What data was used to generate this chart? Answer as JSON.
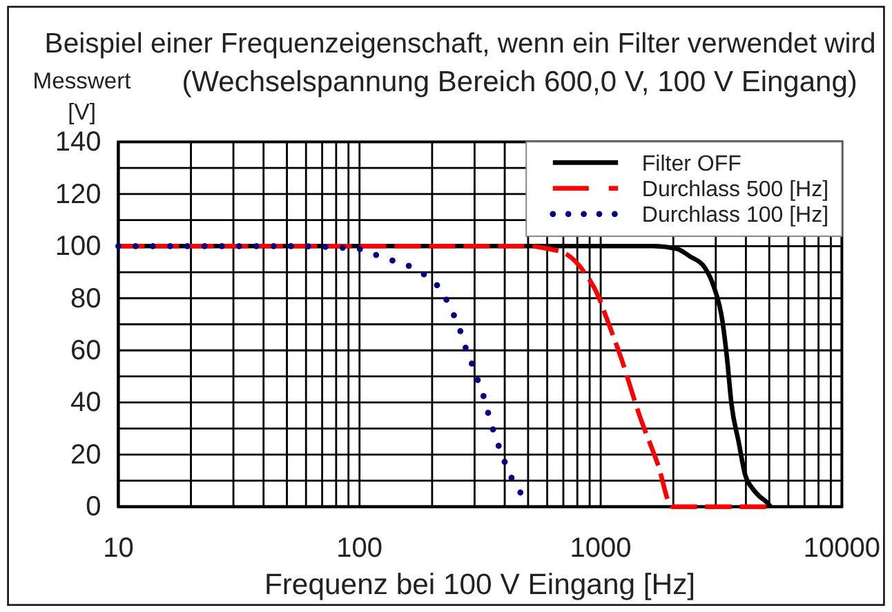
{
  "chart_data": {
    "type": "line",
    "title": "Beispiel einer Frequenzeigenschaft, wenn ein Filter verwendet wird",
    "subtitle": "(Wechselspannung Bereich 600,0 V, 100 V Eingang)",
    "xlabel": "Frequenz bei 100 V Eingang [Hz]",
    "ylabel": "Messwert [V]",
    "log": "x",
    "xlim": [
      10,
      10000
    ],
    "ylim": [
      0,
      140
    ],
    "xticks": [
      10,
      {
        "value": 20,
        "label": null
      },
      {
        "value": 30,
        "label": null
      },
      {
        "value": 40,
        "label": null
      },
      {
        "value": 50,
        "label": null
      },
      {
        "value": 60,
        "label": null
      },
      {
        "value": 70,
        "label": null
      },
      {
        "value": 80,
        "label": null
      },
      {
        "value": 90,
        "label": null
      },
      100,
      {
        "value": 200,
        "label": null
      },
      {
        "value": 300,
        "label": null
      },
      {
        "value": 400,
        "label": null
      },
      {
        "value": 500,
        "label": null
      },
      {
        "value": 600,
        "label": null
      },
      {
        "value": 700,
        "label": null
      },
      {
        "value": 800,
        "label": null
      },
      {
        "value": 900,
        "label": null
      },
      1000,
      {
        "value": 2000,
        "label": null
      },
      {
        "value": 3000,
        "label": null
      },
      {
        "value": 4000,
        "label": null
      },
      {
        "value": 5000,
        "label": null
      },
      {
        "value": 6000,
        "label": null
      },
      {
        "value": 7000,
        "label": null
      },
      {
        "value": 8000,
        "label": null
      },
      {
        "value": 9000,
        "label": null
      },
      10000
    ],
    "yticks": [
      0,
      {
        "value": 10,
        "label": null
      },
      20,
      {
        "value": 30,
        "label": null
      },
      40,
      {
        "value": 50,
        "label": null
      },
      60,
      {
        "value": 70,
        "label": null
      },
      80,
      {
        "value": 90,
        "label": null
      },
      100,
      {
        "value": 110,
        "label": null
      },
      120,
      {
        "value": 130,
        "label": null
      },
      140
    ],
    "grid": true,
    "legend": "top right",
    "series": [
      {
        "name": "Filter OFF",
        "color": "#000000",
        "line_style": "solid",
        "x": [
          10,
          100,
          1000,
          1650,
          2060,
          2350,
          2690,
          2930,
          3200,
          3340,
          3490,
          3730,
          3980,
          4260,
          4550,
          4850,
          5070
        ],
        "values": [
          100,
          100,
          100,
          100,
          99,
          96,
          92,
          85,
          71,
          57,
          39,
          25,
          12,
          7,
          4,
          2,
          0
        ]
      },
      {
        "name": "Durchlass 500 [Hz]",
        "color": "#ff0000",
        "line_style": "dashed",
        "x": [
          10,
          100,
          505,
          603,
          718,
          855,
          986,
          1042,
          1216,
          1449,
          1730,
          1975,
          4970
        ],
        "values": [
          100,
          100,
          100,
          99,
          97,
          90,
          80,
          74,
          57,
          35,
          16,
          0,
          0
        ]
      },
      {
        "name": "Durchlass 100 [Hz]",
        "color": "#000080",
        "line_style": "dotted",
        "x": [
          10,
          20,
          50,
          98,
          114,
          131,
          155,
          179,
          205,
          225,
          241,
          257,
          268,
          287,
          302,
          323,
          339,
          354,
          372,
          393,
          413,
          445,
          484,
          503
        ],
        "values": [
          100,
          100,
          100,
          99,
          97,
          95,
          93,
          90,
          86,
          81,
          75,
          70,
          64,
          57,
          51,
          44,
          37,
          31,
          25,
          19,
          14,
          8,
          3,
          0
        ]
      }
    ]
  }
}
